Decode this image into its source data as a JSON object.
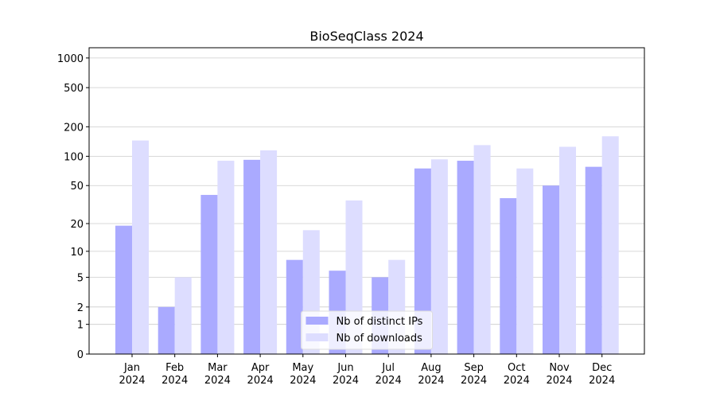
{
  "chart_data": {
    "type": "bar",
    "title": "BioSeqClass 2024",
    "categories": [
      "Jan\n2024",
      "Feb\n2024",
      "Mar\n2024",
      "Apr\n2024",
      "May\n2024",
      "Jun\n2024",
      "Jul\n2024",
      "Aug\n2024",
      "Sep\n2024",
      "Oct\n2024",
      "Nov\n2024",
      "Dec\n2024"
    ],
    "series": [
      {
        "name": "Nb of distinct IPs",
        "color": "#aaaaff",
        "values": [
          19,
          2,
          40,
          92,
          8,
          6,
          5,
          75,
          90,
          37,
          50,
          78
        ]
      },
      {
        "name": "Nb of downloads",
        "color": "#ddddff",
        "values": [
          145,
          5,
          90,
          115,
          17,
          35,
          8,
          93,
          130,
          75,
          125,
          160
        ]
      }
    ],
    "yscale": "symlog",
    "ylim": [
      0,
      1270
    ],
    "yticks": [
      0,
      1,
      2,
      5,
      10,
      20,
      50,
      100,
      200,
      500,
      1000
    ],
    "grid": true,
    "legend": "lower center"
  }
}
